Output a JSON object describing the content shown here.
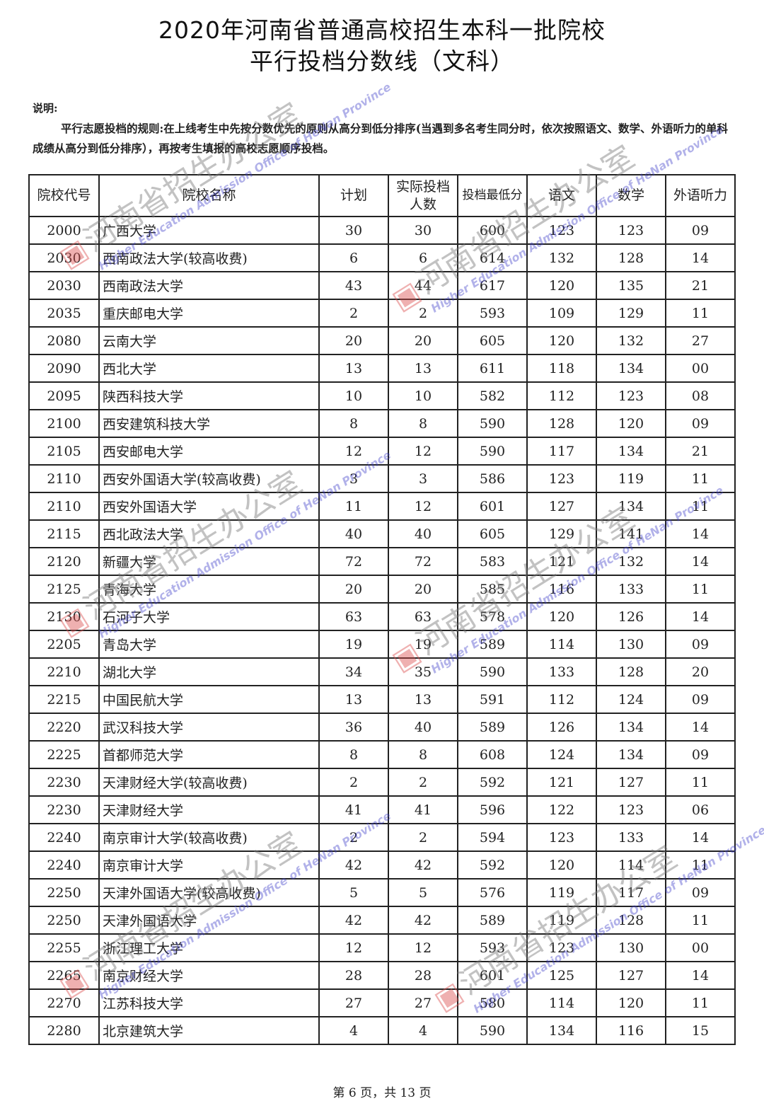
{
  "title_line1": "2020年河南省普通高校招生本科一批院校",
  "title_line2": "平行投档分数线（文科）",
  "note_label": "说明:",
  "note_text": "平行志愿投档的规则:在上线考生中先按分数优先的原则从高分到低分排序(当遇到多名考生同分时，依次按照语文、数学、外语听力的单科成绩从高分到低分排序），再按考生填报的高校志愿顺序投档。",
  "watermark": {
    "cn": "河南省招生办公室",
    "en": "Higher Education Admission Office of HeNan Province",
    "logo": "阳光"
  },
  "table": {
    "headers": [
      "院校代号",
      "院校名称",
      "计划",
      "实际投档人数",
      "投档最低分",
      "语文",
      "数学",
      "外语听力"
    ],
    "rows": [
      [
        "2000",
        "广西大学",
        "30",
        "30",
        "600",
        "123",
        "123",
        "09"
      ],
      [
        "2030",
        "西南政法大学(较高收费)",
        "6",
        "6",
        "614",
        "132",
        "128",
        "14"
      ],
      [
        "2030",
        "西南政法大学",
        "43",
        "44",
        "617",
        "120",
        "135",
        "21"
      ],
      [
        "2035",
        "重庆邮电大学",
        "2",
        "2",
        "593",
        "109",
        "129",
        "11"
      ],
      [
        "2080",
        "云南大学",
        "20",
        "20",
        "605",
        "120",
        "132",
        "27"
      ],
      [
        "2090",
        "西北大学",
        "13",
        "13",
        "611",
        "118",
        "134",
        "00"
      ],
      [
        "2095",
        "陕西科技大学",
        "10",
        "10",
        "582",
        "112",
        "123",
        "08"
      ],
      [
        "2100",
        "西安建筑科技大学",
        "8",
        "8",
        "590",
        "128",
        "120",
        "09"
      ],
      [
        "2105",
        "西安邮电大学",
        "12",
        "12",
        "590",
        "117",
        "134",
        "21"
      ],
      [
        "2110",
        "西安外国语大学(较高收费)",
        "3",
        "3",
        "586",
        "123",
        "119",
        "11"
      ],
      [
        "2110",
        "西安外国语大学",
        "11",
        "12",
        "601",
        "127",
        "134",
        "11"
      ],
      [
        "2115",
        "西北政法大学",
        "40",
        "40",
        "605",
        "129",
        "141",
        "14"
      ],
      [
        "2120",
        "新疆大学",
        "72",
        "72",
        "583",
        "121",
        "132",
        "14"
      ],
      [
        "2125",
        "青海大学",
        "20",
        "20",
        "585",
        "116",
        "133",
        "11"
      ],
      [
        "2130",
        "石河子大学",
        "63",
        "63",
        "578",
        "120",
        "126",
        "14"
      ],
      [
        "2205",
        "青岛大学",
        "19",
        "19",
        "589",
        "114",
        "130",
        "09"
      ],
      [
        "2210",
        "湖北大学",
        "34",
        "35",
        "590",
        "133",
        "128",
        "20"
      ],
      [
        "2215",
        "中国民航大学",
        "13",
        "13",
        "591",
        "112",
        "124",
        "09"
      ],
      [
        "2220",
        "武汉科技大学",
        "36",
        "40",
        "589",
        "126",
        "134",
        "14"
      ],
      [
        "2225",
        "首都师范大学",
        "8",
        "8",
        "608",
        "124",
        "134",
        "09"
      ],
      [
        "2230",
        "天津财经大学(较高收费)",
        "2",
        "2",
        "592",
        "121",
        "127",
        "11"
      ],
      [
        "2230",
        "天津财经大学",
        "41",
        "41",
        "596",
        "122",
        "123",
        "06"
      ],
      [
        "2240",
        "南京审计大学(较高收费)",
        "2",
        "2",
        "594",
        "123",
        "133",
        "14"
      ],
      [
        "2240",
        "南京审计大学",
        "42",
        "42",
        "592",
        "120",
        "114",
        "11"
      ],
      [
        "2250",
        "天津外国语大学(较高收费)",
        "5",
        "5",
        "576",
        "119",
        "117",
        "09"
      ],
      [
        "2250",
        "天津外国语大学",
        "42",
        "42",
        "589",
        "119",
        "128",
        "11"
      ],
      [
        "2255",
        "浙江理工大学",
        "12",
        "12",
        "593",
        "123",
        "130",
        "00"
      ],
      [
        "2265",
        "南京财经大学",
        "28",
        "28",
        "601",
        "125",
        "127",
        "14"
      ],
      [
        "2270",
        "江苏科技大学",
        "27",
        "27",
        "580",
        "114",
        "120",
        "11"
      ],
      [
        "2280",
        "北京建筑大学",
        "4",
        "4",
        "590",
        "134",
        "116",
        "15"
      ]
    ]
  },
  "footer": "第 6 页，共 13 页"
}
